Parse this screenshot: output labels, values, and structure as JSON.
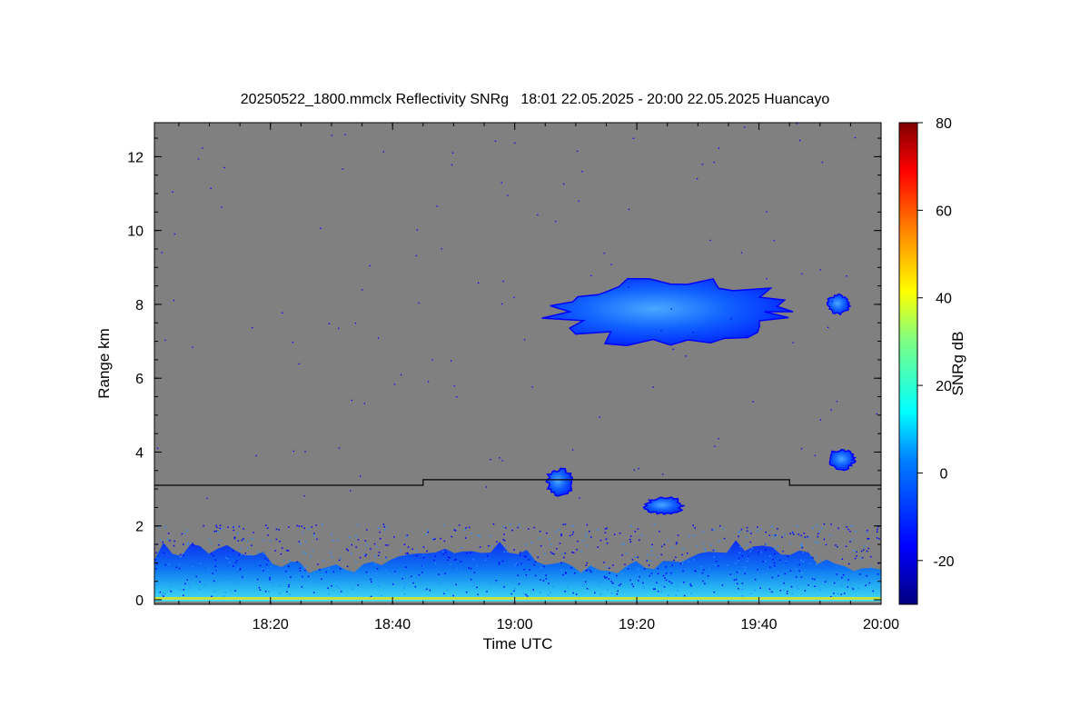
{
  "chart_data": {
    "type": "heatmap",
    "title": "20250522_1800.mmclx Reflectivity SNRg   18:01 22.05.2025 - 20:00 22.05.2025 Huancayo",
    "xlabel": "Time UTC",
    "ylabel": "Range km",
    "x_axis": {
      "ticks": [
        "18:20",
        "18:40",
        "19:00",
        "19:20",
        "19:40",
        "20:00"
      ]
    },
    "y_axis": {
      "ticks": [
        "0",
        "2",
        "4",
        "6",
        "8",
        "10",
        "12"
      ]
    },
    "colorbar": {
      "label": "SNRg dB",
      "ticks": [
        "80",
        "60",
        "40",
        "20",
        "0",
        "-20"
      ],
      "range": [
        -30,
        80
      ],
      "colors": [
        "#00007f",
        "#0000ff",
        "#0080ff",
        "#00ffff",
        "#80ff80",
        "#ffff00",
        "#ff8000",
        "#ff0000",
        "#7f0000"
      ]
    },
    "background_color": "#808080",
    "cloud_layers": [
      {
        "name": "boundary layer echo",
        "time_start": "18:01",
        "time_end": "20:00",
        "range_km": [
          0.1,
          1.7
        ],
        "snr_db": [
          -25,
          5
        ]
      },
      {
        "name": "upper cloud",
        "time_start": "19:04",
        "time_end": "19:47",
        "range_km": [
          6.8,
          8.8
        ],
        "snr_db": [
          -25,
          -5
        ]
      },
      {
        "name": "isolated cloud",
        "time_start": "19:51",
        "time_end": "19:55",
        "range_km": [
          7.7,
          8.3
        ],
        "snr_db": [
          -25,
          -10
        ]
      },
      {
        "name": "mid-level echo",
        "time_start": "19:05",
        "time_end": "19:10",
        "range_km": [
          2.8,
          3.6
        ],
        "snr_db": [
          -25,
          -10
        ]
      },
      {
        "name": "mid-level echo",
        "time_start": "19:21",
        "time_end": "19:28",
        "range_km": [
          2.3,
          2.8
        ],
        "snr_db": [
          -25,
          -10
        ]
      },
      {
        "name": "mid-level echo",
        "time_start": "19:51",
        "time_end": "19:56",
        "range_km": [
          3.5,
          4.1
        ],
        "snr_db": [
          -25,
          -10
        ]
      }
    ],
    "threshold_line": [
      {
        "time": "18:01",
        "range_km": 3.1
      },
      {
        "time": "18:45",
        "range_km": 3.1
      },
      {
        "time": "18:45",
        "range_km": 3.25
      },
      {
        "time": "19:45",
        "range_km": 3.25
      },
      {
        "time": "19:45",
        "range_km": 3.1
      },
      {
        "time": "20:00",
        "range_km": 3.1
      }
    ]
  }
}
